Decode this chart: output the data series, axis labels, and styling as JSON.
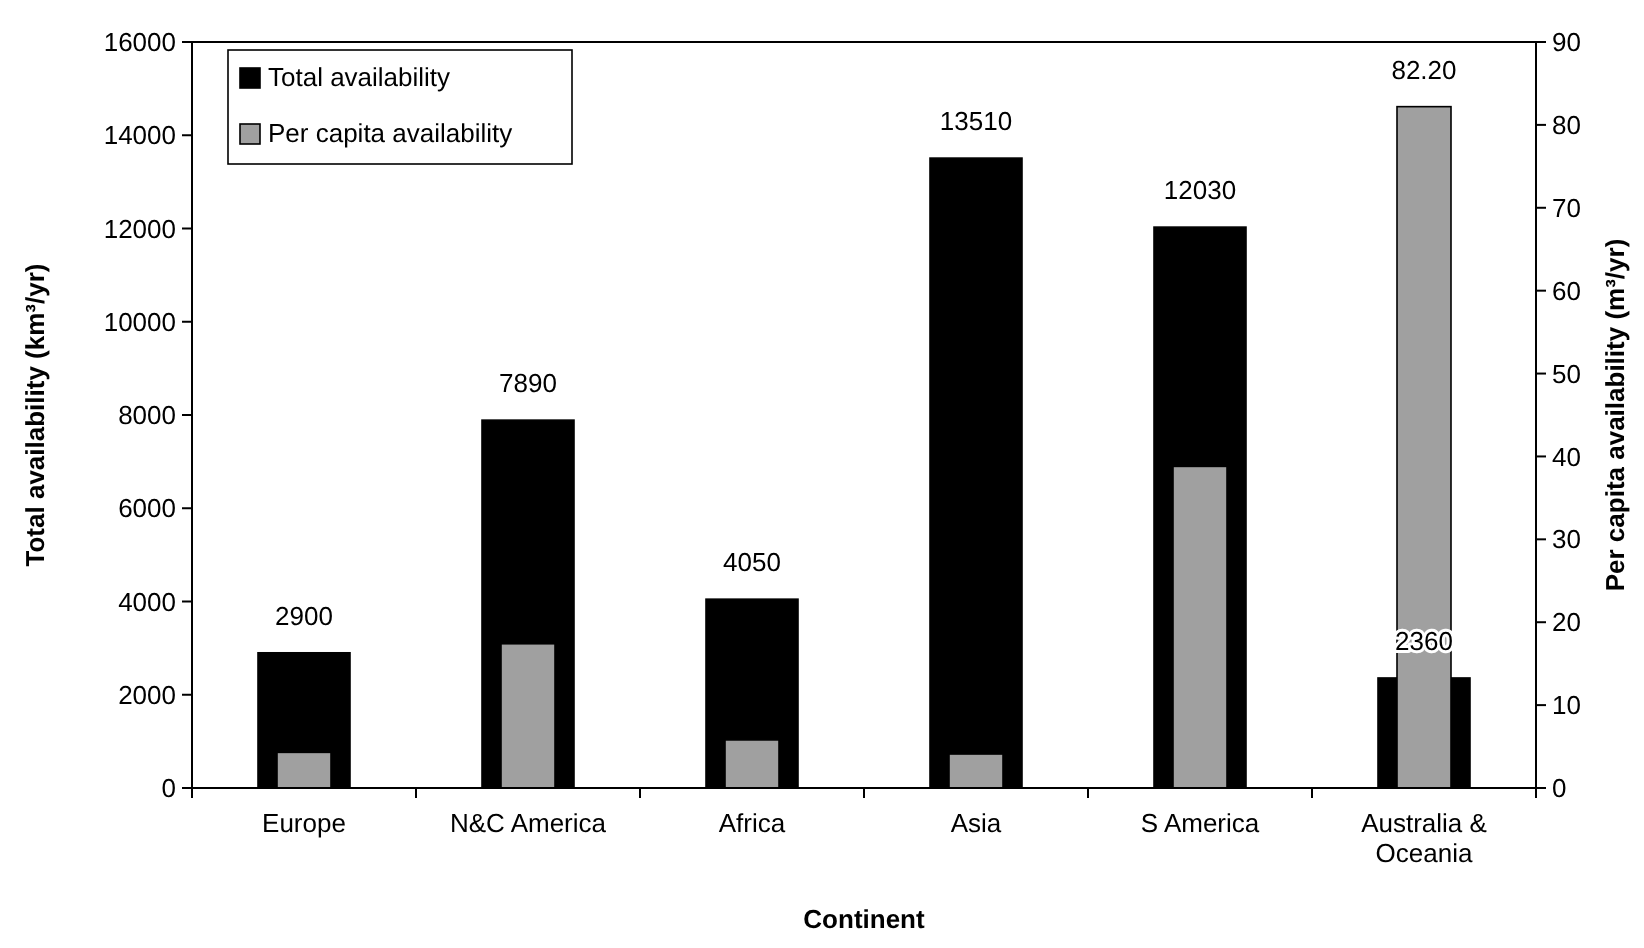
{
  "chart_data": {
    "type": "bar",
    "xlabel": "Continent",
    "ylabel": "Total availability (km³/yr)",
    "y2label": "Per capita availability (m³/yr)",
    "categories": [
      "Europe",
      "N&C America",
      "Africa",
      "Asia",
      "S America",
      "Australia & Oceania"
    ],
    "series": [
      {
        "name": "Total availability",
        "color": "#000000",
        "values": [
          2900,
          7890,
          4050,
          13510,
          12030,
          2360
        ],
        "value_labels": [
          "2900",
          "7890",
          "4050",
          "13510",
          "12030",
          "2360"
        ]
      },
      {
        "name": "Per capita availability",
        "color": "#a0a0a0",
        "axis": "y2",
        "values": [
          4.3,
          17.4,
          5.8,
          4.1,
          38.8,
          82.2
        ],
        "value_labels": [
          null,
          null,
          null,
          null,
          null,
          "82.20"
        ]
      }
    ],
    "ylim": [
      0,
      16000
    ],
    "yticks": [
      0,
      2000,
      4000,
      6000,
      8000,
      10000,
      12000,
      14000,
      16000
    ],
    "y2lim": [
      0,
      90
    ],
    "y2ticks": [
      0,
      10,
      20,
      30,
      40,
      50,
      60,
      70,
      80,
      90
    ],
    "legend": "top left",
    "grid": false
  }
}
